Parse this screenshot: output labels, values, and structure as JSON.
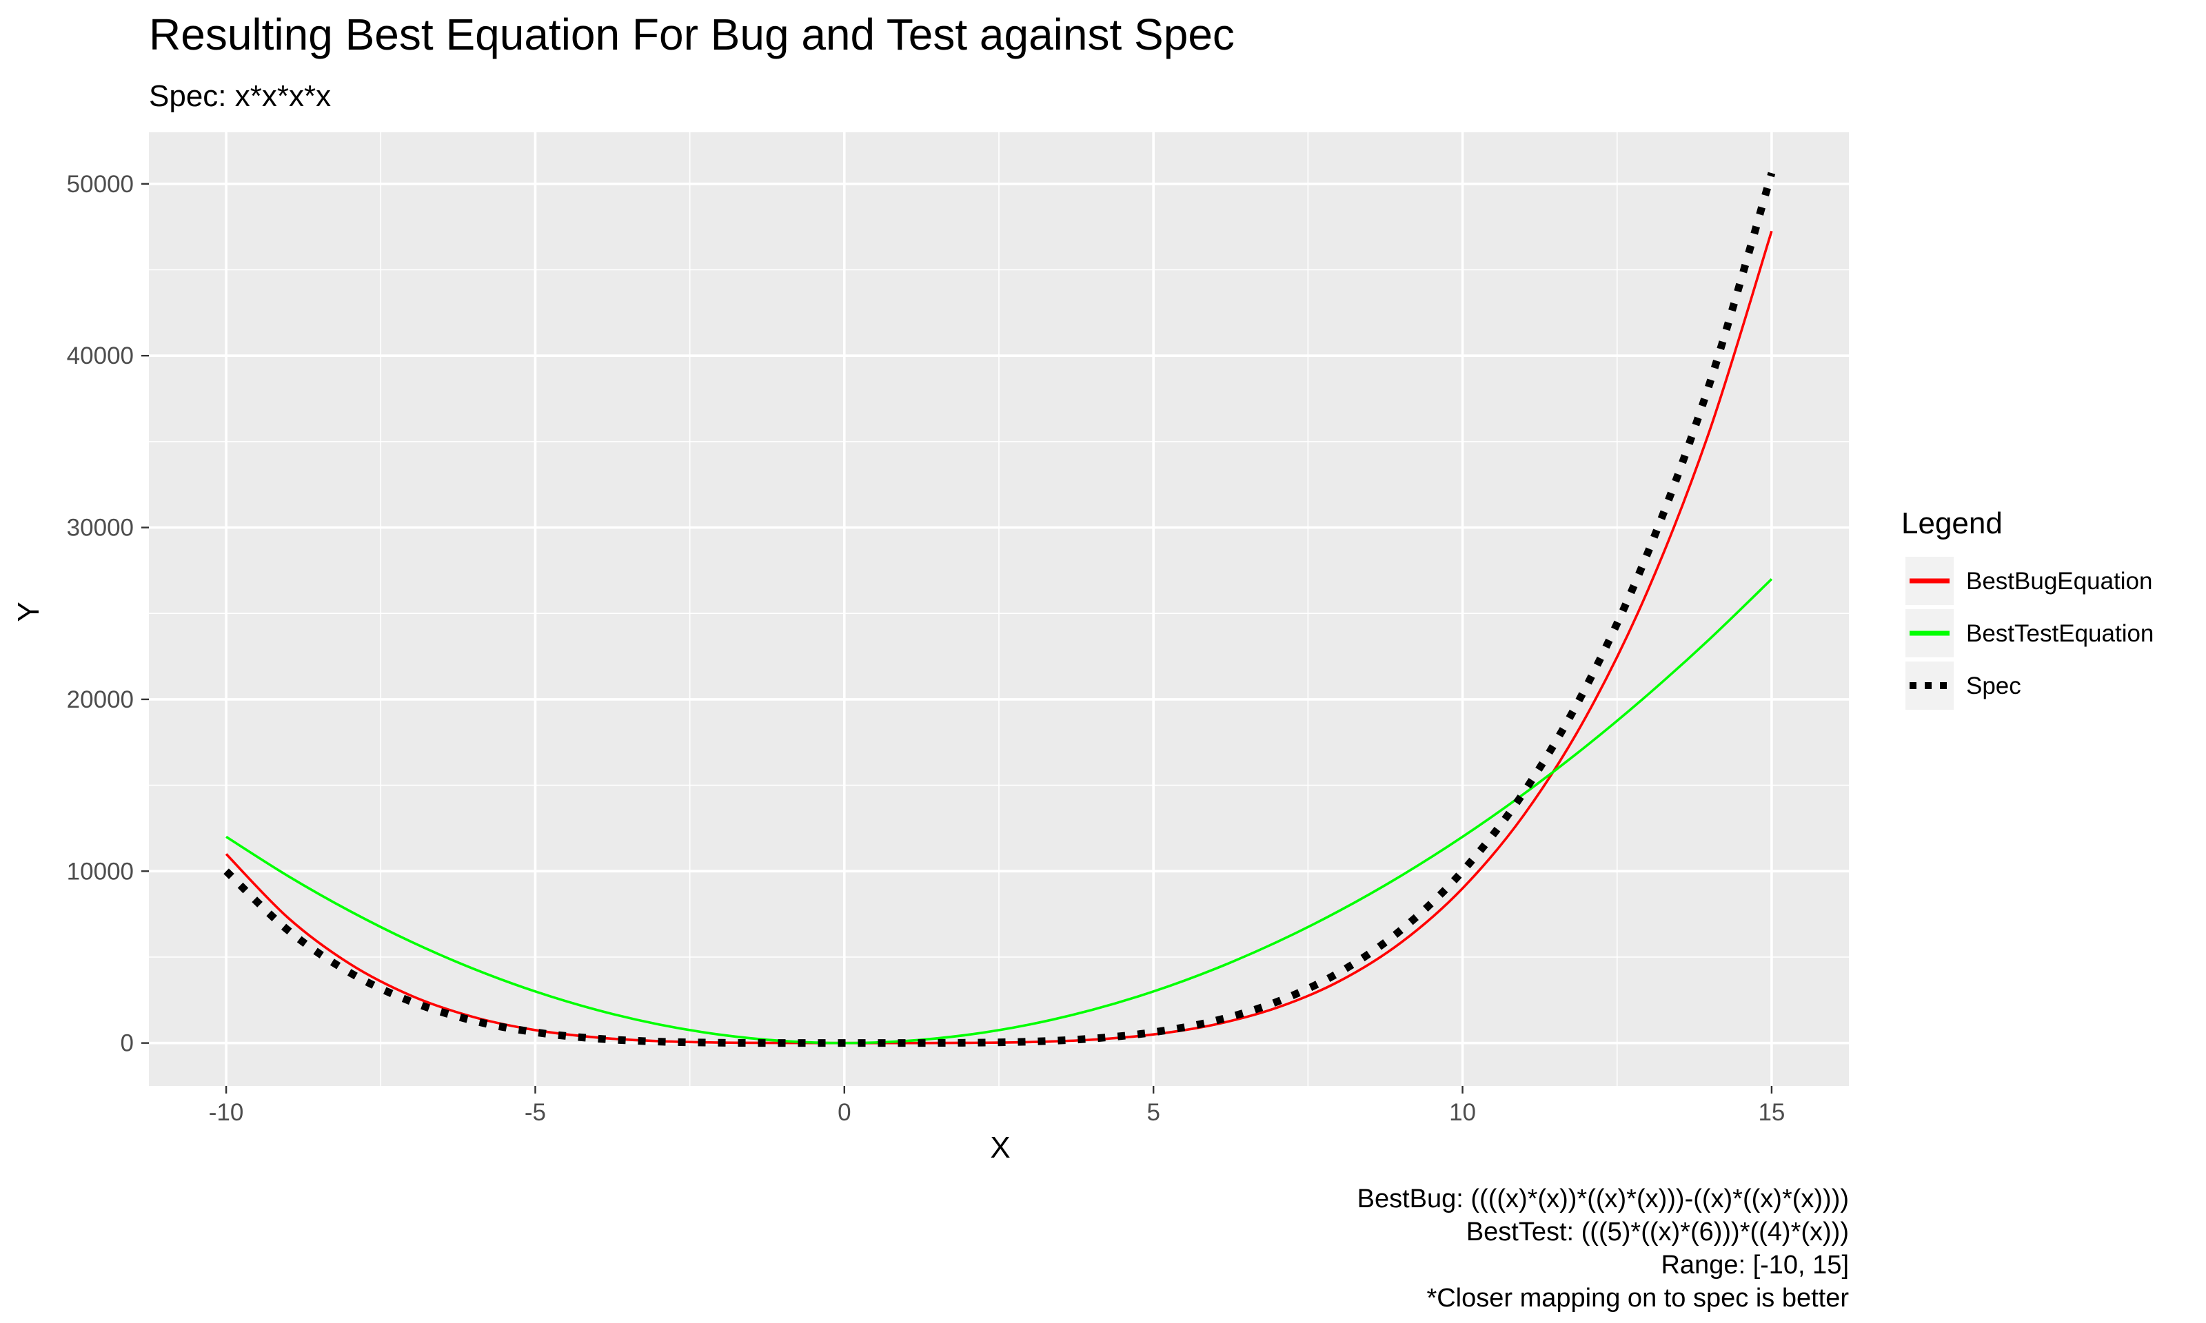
{
  "chart_data": {
    "type": "line",
    "title": "Resulting Best Equation For Bug and Test against Spec",
    "subtitle": "Spec: x*x*x*x",
    "xlabel": "X",
    "ylabel": "Y",
    "xlim": [
      -11.25,
      16.25
    ],
    "ylim": [
      -2500,
      53000
    ],
    "x_ticks": [
      -10,
      -5,
      0,
      5,
      10,
      15
    ],
    "x_tick_labels": [
      "-10",
      "-5",
      "0",
      "5",
      "10",
      "15"
    ],
    "y_ticks": [
      0,
      10000,
      20000,
      30000,
      40000,
      50000
    ],
    "y_tick_labels": [
      "0",
      "10000",
      "20000",
      "30000",
      "40000",
      "50000"
    ],
    "grid": true,
    "legend": {
      "title": "Legend",
      "position": "right"
    },
    "x": [
      -10,
      -9,
      -8,
      -7,
      -6,
      -5,
      -4,
      -3,
      -2,
      -1,
      0,
      1,
      2,
      3,
      4,
      5,
      6,
      7,
      8,
      9,
      10,
      11,
      12,
      13,
      14,
      15
    ],
    "series": [
      {
        "name": "BestBugEquation",
        "color": "#ff0000",
        "style": "solid",
        "values": [
          11000,
          7290,
          4608,
          2744,
          1512,
          750,
          320,
          108,
          24,
          2,
          0,
          0,
          8,
          54,
          192,
          500,
          1080,
          2058,
          3584,
          5832,
          9000,
          13310,
          19008,
          26364,
          35672,
          47250
        ]
      },
      {
        "name": "BestTestEquation",
        "color": "#00ff00",
        "style": "solid",
        "values": [
          12000,
          9720,
          7680,
          5880,
          4320,
          3000,
          1920,
          1080,
          480,
          120,
          0,
          120,
          480,
          1080,
          1920,
          3000,
          4320,
          5880,
          7680,
          9720,
          12000,
          14520,
          17280,
          20280,
          23520,
          27000
        ]
      },
      {
        "name": "Spec",
        "color": "#000000",
        "style": "dotted",
        "values": [
          10000,
          6561,
          4096,
          2401,
          1296,
          625,
          256,
          81,
          16,
          1,
          0,
          1,
          16,
          81,
          256,
          625,
          1296,
          2401,
          4096,
          6561,
          10000,
          14641,
          20736,
          28561,
          38416,
          50625
        ]
      }
    ],
    "caption": [
      "BestBug: ((((x)*(x))*((x)*(x)))-((x)*((x)*(x))))",
      "BestTest: (((5)*((x)*(6)))*((4)*(x)))",
      "Range: [-10, 15]",
      "*Closer mapping on to spec is better"
    ]
  }
}
